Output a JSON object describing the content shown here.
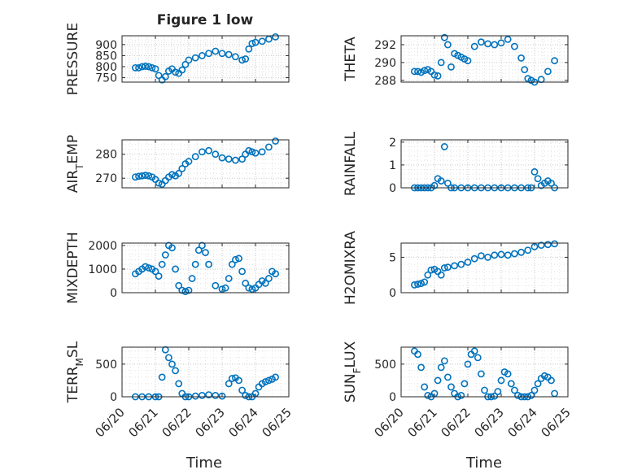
{
  "figure": {
    "title": "Figure 1 low"
  },
  "x_axis": {
    "label": "Time",
    "range": [
      "06/20",
      "06/25"
    ],
    "tick_labels": [
      "06/20",
      "06/21",
      "06/22",
      "06/23",
      "06/24",
      "06/25"
    ]
  },
  "style": {
    "marker_color": "#0072BD",
    "grid": "major and minor, dotted",
    "box": true
  },
  "chart_data": [
    {
      "type": "scatter",
      "ylabel": "PRESSURE",
      "ylim": [
        730,
        940
      ],
      "yticks": [
        750,
        800,
        850,
        900
      ],
      "x": [
        0.4,
        0.5,
        0.6,
        0.7,
        0.8,
        0.9,
        1.0,
        1.1,
        1.2,
        1.3,
        1.4,
        1.5,
        1.6,
        1.7,
        1.8,
        1.9,
        2.0,
        2.2,
        2.4,
        2.6,
        2.8,
        3.0,
        3.2,
        3.4,
        3.6,
        3.7,
        3.8,
        3.9,
        4.0,
        4.2,
        4.4,
        4.6
      ],
      "values": [
        795,
        795,
        800,
        802,
        800,
        795,
        790,
        760,
        740,
        755,
        780,
        790,
        775,
        770,
        785,
        810,
        830,
        840,
        850,
        860,
        870,
        860,
        855,
        845,
        830,
        835,
        880,
        905,
        910,
        915,
        925,
        935
      ]
    },
    {
      "type": "scatter",
      "ylabel": "THETA",
      "ylim": [
        287.8,
        293
      ],
      "yticks": [
        288,
        290,
        292
      ],
      "x": [
        0.4,
        0.5,
        0.6,
        0.7,
        0.8,
        0.9,
        1.0,
        1.1,
        1.2,
        1.3,
        1.4,
        1.5,
        1.6,
        1.7,
        1.8,
        1.9,
        2.0,
        2.2,
        2.4,
        2.6,
        2.8,
        3.0,
        3.2,
        3.4,
        3.6,
        3.7,
        3.8,
        3.9,
        4.0,
        4.2,
        4.4,
        4.6
      ],
      "values": [
        289,
        289,
        288.9,
        289.1,
        289.2,
        289,
        288.6,
        288.5,
        290,
        292.8,
        292,
        289.5,
        291,
        290.8,
        290.6,
        290.4,
        290.2,
        291.8,
        292.3,
        292.1,
        292,
        292.2,
        292.6,
        291.8,
        290.5,
        289.2,
        288.2,
        288,
        287.8,
        288.1,
        289,
        290.2
      ]
    },
    {
      "type": "scatter",
      "ylabel": "AIR_TEMP",
      "ylim": [
        266,
        286
      ],
      "yticks": [
        270,
        280
      ],
      "x": [
        0.4,
        0.5,
        0.6,
        0.7,
        0.8,
        0.9,
        1.0,
        1.1,
        1.2,
        1.3,
        1.4,
        1.5,
        1.6,
        1.7,
        1.8,
        1.9,
        2.0,
        2.2,
        2.4,
        2.6,
        2.8,
        3.0,
        3.2,
        3.4,
        3.6,
        3.7,
        3.8,
        3.9,
        4.0,
        4.2,
        4.4,
        4.6
      ],
      "values": [
        270.5,
        270.8,
        271,
        271.2,
        271,
        270.5,
        269.5,
        268,
        267.5,
        269,
        270.5,
        271.5,
        271,
        272,
        274,
        276,
        277,
        279,
        281,
        281.5,
        280,
        278.5,
        278,
        277.5,
        278,
        280,
        281.5,
        281,
        280.5,
        281,
        283,
        285.5
      ]
    },
    {
      "type": "scatter",
      "ylabel": "RAINFALL",
      "ylim": [
        0,
        2.1
      ],
      "yticks": [
        0,
        1,
        2
      ],
      "x": [
        0.4,
        0.5,
        0.6,
        0.7,
        0.8,
        0.9,
        1.0,
        1.1,
        1.2,
        1.3,
        1.4,
        1.5,
        1.6,
        1.8,
        2.0,
        2.2,
        2.4,
        2.6,
        2.8,
        3.0,
        3.2,
        3.4,
        3.6,
        3.8,
        3.9,
        4.0,
        4.1,
        4.2,
        4.3,
        4.4,
        4.5,
        4.6
      ],
      "values": [
        0,
        0,
        0,
        0,
        0,
        0,
        0.1,
        0.4,
        0.3,
        1.8,
        0.2,
        0,
        0,
        0,
        0,
        0,
        0,
        0,
        0,
        0,
        0,
        0,
        0,
        0,
        0,
        0.7,
        0.4,
        0.1,
        0.2,
        0.3,
        0.2,
        0
      ]
    },
    {
      "type": "scatter",
      "ylabel": "MIXDEPTH",
      "ylim": [
        0,
        2100
      ],
      "yticks": [
        0,
        1000,
        2000
      ],
      "x": [
        0.4,
        0.5,
        0.6,
        0.7,
        0.8,
        0.9,
        1.0,
        1.1,
        1.2,
        1.3,
        1.4,
        1.5,
        1.6,
        1.7,
        1.8,
        1.9,
        2.0,
        2.1,
        2.2,
        2.3,
        2.4,
        2.5,
        2.6,
        2.8,
        3.0,
        3.1,
        3.2,
        3.3,
        3.4,
        3.5,
        3.6,
        3.7,
        3.8,
        3.9,
        4.0,
        4.1,
        4.2,
        4.3,
        4.4,
        4.5,
        4.6
      ],
      "values": [
        800,
        900,
        1000,
        1100,
        1050,
        1000,
        900,
        700,
        1200,
        1600,
        2000,
        1900,
        1000,
        300,
        100,
        50,
        100,
        600,
        1200,
        1800,
        2000,
        1700,
        1200,
        300,
        150,
        200,
        600,
        1200,
        1400,
        1450,
        900,
        400,
        200,
        150,
        200,
        350,
        500,
        400,
        600,
        900,
        800
      ]
    },
    {
      "type": "scatter",
      "ylabel": "H2OMIXRA",
      "ylim": [
        0,
        7
      ],
      "yticks": [
        0,
        5
      ],
      "x": [
        0.4,
        0.5,
        0.6,
        0.7,
        0.8,
        0.9,
        1.0,
        1.1,
        1.2,
        1.3,
        1.4,
        1.6,
        1.8,
        2.0,
        2.2,
        2.4,
        2.6,
        2.8,
        3.0,
        3.2,
        3.4,
        3.6,
        3.8,
        4.0,
        4.2,
        4.4,
        4.6
      ],
      "values": [
        1.1,
        1.2,
        1.3,
        1.5,
        2.5,
        3.2,
        3.3,
        3.0,
        2.5,
        3.5,
        3.6,
        3.8,
        4.0,
        4.3,
        4.8,
        5.2,
        5.0,
        5.3,
        5.4,
        5.3,
        5.5,
        5.7,
        6.0,
        6.5,
        6.7,
        6.8,
        6.9
      ]
    },
    {
      "type": "scatter",
      "ylabel": "TERR_MSL",
      "ylim": [
        0,
        760
      ],
      "yticks": [
        0,
        500
      ],
      "x": [
        0.4,
        0.6,
        0.8,
        1.0,
        1.1,
        1.2,
        1.3,
        1.4,
        1.5,
        1.6,
        1.7,
        1.8,
        1.9,
        2.0,
        2.2,
        2.4,
        2.6,
        2.8,
        3.0,
        3.2,
        3.3,
        3.4,
        3.5,
        3.6,
        3.7,
        3.8,
        3.9,
        4.0,
        4.1,
        4.2,
        4.3,
        4.4,
        4.5,
        4.6
      ],
      "values": [
        0,
        0,
        0,
        0,
        0,
        300,
        720,
        600,
        500,
        400,
        200,
        50,
        0,
        0,
        10,
        20,
        30,
        20,
        10,
        200,
        280,
        290,
        250,
        100,
        20,
        0,
        0,
        50,
        150,
        200,
        230,
        250,
        270,
        300
      ]
    },
    {
      "type": "scatter",
      "ylabel": "SUN_FLUX",
      "ylim": [
        0,
        760
      ],
      "yticks": [
        0,
        500
      ],
      "x": [
        0.4,
        0.5,
        0.6,
        0.7,
        0.8,
        0.9,
        1.0,
        1.1,
        1.2,
        1.3,
        1.4,
        1.5,
        1.6,
        1.7,
        1.8,
        1.9,
        2.0,
        2.1,
        2.2,
        2.3,
        2.4,
        2.5,
        2.6,
        2.7,
        2.8,
        2.9,
        3.0,
        3.1,
        3.2,
        3.3,
        3.4,
        3.5,
        3.6,
        3.7,
        3.8,
        3.9,
        4.0,
        4.1,
        4.2,
        4.3,
        4.4,
        4.5,
        4.6
      ],
      "values": [
        700,
        650,
        450,
        150,
        20,
        0,
        50,
        250,
        450,
        550,
        300,
        150,
        50,
        0,
        20,
        200,
        500,
        650,
        700,
        600,
        350,
        100,
        0,
        0,
        10,
        80,
        250,
        380,
        350,
        200,
        100,
        20,
        0,
        0,
        0,
        20,
        100,
        200,
        280,
        320,
        300,
        250,
        50
      ]
    }
  ]
}
